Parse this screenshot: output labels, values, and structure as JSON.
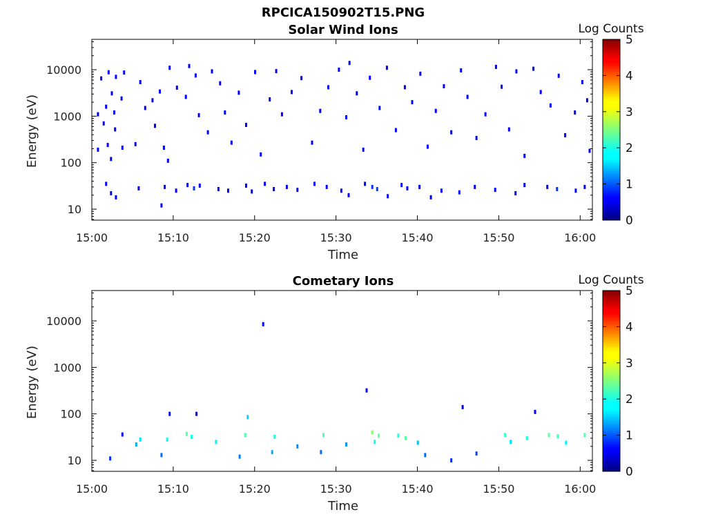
{
  "figure_title": "RPCICA150902T15.PNG",
  "colors": {
    "colormap": "jet",
    "axes_stroke": "#000000",
    "background": "#ffffff",
    "dark_pixel": "#00007f"
  },
  "chart_data": [
    {
      "type": "heatmap",
      "title": "Solar Wind Ions",
      "xlabel": "Time",
      "ylabel": "Energy (eV)",
      "x_ticks": [
        "15:00",
        "15:10",
        "15:20",
        "15:30",
        "15:40",
        "15:50",
        "16:00"
      ],
      "x_range_minutes": [
        0,
        61.5
      ],
      "y_scale": "log",
      "y_ticks": [
        "10",
        "100",
        "1000",
        "10000"
      ],
      "y_range_ev": [
        5.8,
        45000
      ],
      "colorbar": {
        "label": "Log Counts",
        "ticks": [
          "0",
          "1",
          "2",
          "3",
          "4",
          "5"
        ],
        "range": [
          0,
          5
        ]
      },
      "description_of_values": "sparse single counts (log counts ~0) scattered over 10-20000 eV; denser low-energy band ~20-40 eV",
      "cells": [
        {
          "t": 1.2,
          "e": 6500,
          "c": 0
        },
        {
          "t": 2.1,
          "e": 8800,
          "c": 0
        },
        {
          "t": 3.0,
          "e": 7000,
          "c": 0
        },
        {
          "t": 4.0,
          "e": 8700,
          "c": 0
        },
        {
          "t": 2.5,
          "e": 3100,
          "c": 0
        },
        {
          "t": 3.7,
          "e": 2400,
          "c": 0
        },
        {
          "t": 1.8,
          "e": 1600,
          "c": 0
        },
        {
          "t": 2.8,
          "e": 1200,
          "c": 0
        },
        {
          "t": 0.8,
          "e": 1100,
          "c": 0
        },
        {
          "t": 1.5,
          "e": 700,
          "c": 0
        },
        {
          "t": 2.9,
          "e": 520,
          "c": 0
        },
        {
          "t": 0.8,
          "e": 190,
          "c": 0
        },
        {
          "t": 2.0,
          "e": 240,
          "c": 0
        },
        {
          "t": 2.4,
          "e": 120,
          "c": 0
        },
        {
          "t": 3.8,
          "e": 210,
          "c": 0
        },
        {
          "t": 5.4,
          "e": 250,
          "c": 0
        },
        {
          "t": 6.0,
          "e": 5400,
          "c": 0
        },
        {
          "t": 6.6,
          "e": 1500,
          "c": 0
        },
        {
          "t": 7.5,
          "e": 2200,
          "c": 0
        },
        {
          "t": 8.4,
          "e": 3400,
          "c": 0
        },
        {
          "t": 7.8,
          "e": 620,
          "c": 0
        },
        {
          "t": 8.9,
          "e": 210,
          "c": 0
        },
        {
          "t": 9.4,
          "e": 110,
          "c": 0
        },
        {
          "t": 9.6,
          "e": 11000,
          "c": 0
        },
        {
          "t": 10.5,
          "e": 4100,
          "c": 0
        },
        {
          "t": 11.6,
          "e": 2600,
          "c": 0
        },
        {
          "t": 12.0,
          "e": 12000,
          "c": 0
        },
        {
          "t": 12.8,
          "e": 7500,
          "c": 0
        },
        {
          "t": 13.2,
          "e": 1050,
          "c": 0
        },
        {
          "t": 14.3,
          "e": 450,
          "c": 0
        },
        {
          "t": 14.8,
          "e": 9200,
          "c": 0
        },
        {
          "t": 15.8,
          "e": 5100,
          "c": 0
        },
        {
          "t": 16.4,
          "e": 1200,
          "c": 0
        },
        {
          "t": 17.2,
          "e": 270,
          "c": 0
        },
        {
          "t": 18.1,
          "e": 3200,
          "c": 0
        },
        {
          "t": 19.0,
          "e": 650,
          "c": 0
        },
        {
          "t": 20.1,
          "e": 8900,
          "c": 0
        },
        {
          "t": 20.8,
          "e": 150,
          "c": 0
        },
        {
          "t": 21.9,
          "e": 2300,
          "c": 0
        },
        {
          "t": 22.7,
          "e": 9300,
          "c": 0
        },
        {
          "t": 23.4,
          "e": 1100,
          "c": 0
        },
        {
          "t": 24.6,
          "e": 3300,
          "c": 0
        },
        {
          "t": 25.8,
          "e": 6600,
          "c": 0
        },
        {
          "t": 27.1,
          "e": 270,
          "c": 0
        },
        {
          "t": 28.1,
          "e": 1300,
          "c": 0
        },
        {
          "t": 29.1,
          "e": 4200,
          "c": 0
        },
        {
          "t": 30.4,
          "e": 10000,
          "c": 0
        },
        {
          "t": 31.3,
          "e": 950,
          "c": 0
        },
        {
          "t": 31.7,
          "e": 14000,
          "c": 0
        },
        {
          "t": 32.6,
          "e": 3100,
          "c": 0
        },
        {
          "t": 33.4,
          "e": 190,
          "c": 0
        },
        {
          "t": 34.2,
          "e": 6700,
          "c": 0
        },
        {
          "t": 35.4,
          "e": 1500,
          "c": 0
        },
        {
          "t": 36.3,
          "e": 11000,
          "c": 0
        },
        {
          "t": 37.4,
          "e": 500,
          "c": 0
        },
        {
          "t": 38.5,
          "e": 4200,
          "c": 0
        },
        {
          "t": 39.4,
          "e": 2000,
          "c": 0
        },
        {
          "t": 40.4,
          "e": 8200,
          "c": 0
        },
        {
          "t": 41.3,
          "e": 220,
          "c": 0
        },
        {
          "t": 42.3,
          "e": 1300,
          "c": 0
        },
        {
          "t": 43.3,
          "e": 4400,
          "c": 0
        },
        {
          "t": 44.2,
          "e": 450,
          "c": 0
        },
        {
          "t": 45.4,
          "e": 9700,
          "c": 0
        },
        {
          "t": 46.2,
          "e": 2600,
          "c": 0
        },
        {
          "t": 47.3,
          "e": 340,
          "c": 0
        },
        {
          "t": 48.4,
          "e": 1100,
          "c": 0
        },
        {
          "t": 49.7,
          "e": 11500,
          "c": 0
        },
        {
          "t": 50.4,
          "e": 4300,
          "c": 0
        },
        {
          "t": 51.3,
          "e": 520,
          "c": 0
        },
        {
          "t": 52.2,
          "e": 9200,
          "c": 0
        },
        {
          "t": 53.2,
          "e": 140,
          "c": 0
        },
        {
          "t": 54.3,
          "e": 10500,
          "c": 0
        },
        {
          "t": 55.2,
          "e": 3300,
          "c": 0
        },
        {
          "t": 56.4,
          "e": 1700,
          "c": 0
        },
        {
          "t": 57.4,
          "e": 7400,
          "c": 0
        },
        {
          "t": 58.2,
          "e": 390,
          "c": 0
        },
        {
          "t": 59.4,
          "e": 1200,
          "c": 0
        },
        {
          "t": 60.3,
          "e": 5400,
          "c": 0
        },
        {
          "t": 60.9,
          "e": 2200,
          "c": 0
        },
        {
          "t": 61.2,
          "e": 180,
          "c": 0
        },
        {
          "t": 1.8,
          "e": 35,
          "c": 0
        },
        {
          "t": 2.4,
          "e": 22,
          "c": 0
        },
        {
          "t": 3.0,
          "e": 18,
          "c": 0
        },
        {
          "t": 5.8,
          "e": 28,
          "c": 0
        },
        {
          "t": 8.6,
          "e": 12,
          "c": 0
        },
        {
          "t": 9.0,
          "e": 30,
          "c": 0
        },
        {
          "t": 10.4,
          "e": 25,
          "c": 0
        },
        {
          "t": 11.8,
          "e": 33,
          "c": 0
        },
        {
          "t": 12.6,
          "e": 28,
          "c": 0.3
        },
        {
          "t": 13.3,
          "e": 32,
          "c": 0
        },
        {
          "t": 15.6,
          "e": 27,
          "c": 0
        },
        {
          "t": 16.8,
          "e": 25,
          "c": 0
        },
        {
          "t": 19.0,
          "e": 32,
          "c": 0
        },
        {
          "t": 19.7,
          "e": 24,
          "c": 0
        },
        {
          "t": 21.3,
          "e": 35,
          "c": 0
        },
        {
          "t": 22.4,
          "e": 27,
          "c": 0
        },
        {
          "t": 24.0,
          "e": 30,
          "c": 0
        },
        {
          "t": 25.3,
          "e": 26,
          "c": 0
        },
        {
          "t": 27.4,
          "e": 35,
          "c": 0
        },
        {
          "t": 28.9,
          "e": 30,
          "c": 0
        },
        {
          "t": 30.7,
          "e": 25,
          "c": 0
        },
        {
          "t": 31.6,
          "e": 20,
          "c": 0
        },
        {
          "t": 33.6,
          "e": 35,
          "c": 0
        },
        {
          "t": 34.5,
          "e": 30,
          "c": 0.3
        },
        {
          "t": 35.1,
          "e": 27,
          "c": 0.4
        },
        {
          "t": 36.4,
          "e": 19,
          "c": 0
        },
        {
          "t": 38.1,
          "e": 33,
          "c": 0
        },
        {
          "t": 38.8,
          "e": 28,
          "c": 0
        },
        {
          "t": 40.3,
          "e": 30,
          "c": 0
        },
        {
          "t": 41.7,
          "e": 18,
          "c": 0
        },
        {
          "t": 43.0,
          "e": 25,
          "c": 0
        },
        {
          "t": 45.2,
          "e": 23,
          "c": 0
        },
        {
          "t": 47.1,
          "e": 30,
          "c": 0
        },
        {
          "t": 49.6,
          "e": 26,
          "c": 0
        },
        {
          "t": 52.1,
          "e": 22,
          "c": 0
        },
        {
          "t": 53.2,
          "e": 33,
          "c": 0
        },
        {
          "t": 56.0,
          "e": 30,
          "c": 0
        },
        {
          "t": 57.2,
          "e": 27,
          "c": 0.3
        },
        {
          "t": 59.5,
          "e": 25,
          "c": 0
        },
        {
          "t": 60.6,
          "e": 30,
          "c": 0
        }
      ]
    },
    {
      "type": "heatmap",
      "title": "Cometary Ions",
      "xlabel": "Time",
      "ylabel": "Energy (eV)",
      "x_ticks": [
        "15:00",
        "15:10",
        "15:20",
        "15:30",
        "15:40",
        "15:50",
        "16:00"
      ],
      "x_range_minutes": [
        0,
        61.5
      ],
      "y_scale": "log",
      "y_ticks": [
        "10",
        "100",
        "1000",
        "10000"
      ],
      "y_range_ev": [
        5.8,
        45000
      ],
      "colorbar": {
        "label": "Log Counts",
        "ticks": [
          "0",
          "1",
          "2",
          "3",
          "4",
          "5"
        ],
        "range": [
          0,
          5
        ]
      },
      "description_of_values": "bursts of counts at ~8-45 eV with peaks of log counts ~1.5-2; few isolated points at higher energies",
      "cells": [
        {
          "t": 2.3,
          "e": 11,
          "c": 0.3
        },
        {
          "t": 5.5,
          "e": 22,
          "c": 1.0
        },
        {
          "t": 6.0,
          "e": 28,
          "c": 1.3
        },
        {
          "t": 8.6,
          "e": 13,
          "c": 0.6
        },
        {
          "t": 9.3,
          "e": 28,
          "c": 1.5
        },
        {
          "t": 11.7,
          "e": 37,
          "c": 1.9
        },
        {
          "t": 12.3,
          "e": 32,
          "c": 1.6
        },
        {
          "t": 15.3,
          "e": 25,
          "c": 1.4
        },
        {
          "t": 18.2,
          "e": 12,
          "c": 0.7
        },
        {
          "t": 18.9,
          "e": 35,
          "c": 1.9
        },
        {
          "t": 19.2,
          "e": 85,
          "c": 1.2
        },
        {
          "t": 22.5,
          "e": 32,
          "c": 1.7
        },
        {
          "t": 22.2,
          "e": 15,
          "c": 1.0
        },
        {
          "t": 25.3,
          "e": 20,
          "c": 0.8
        },
        {
          "t": 28.5,
          "e": 35,
          "c": 1.9
        },
        {
          "t": 28.2,
          "e": 15,
          "c": 0.6
        },
        {
          "t": 31.3,
          "e": 22,
          "c": 0.9
        },
        {
          "t": 34.5,
          "e": 40,
          "c": 2.2
        },
        {
          "t": 35.3,
          "e": 34,
          "c": 2.0
        },
        {
          "t": 34.8,
          "e": 25,
          "c": 1.5
        },
        {
          "t": 37.7,
          "e": 34,
          "c": 1.6
        },
        {
          "t": 38.6,
          "e": 30,
          "c": 2.0
        },
        {
          "t": 40.1,
          "e": 24,
          "c": 1.1
        },
        {
          "t": 41.0,
          "e": 13,
          "c": 0.6
        },
        {
          "t": 44.2,
          "e": 10,
          "c": 0.3
        },
        {
          "t": 47.3,
          "e": 14,
          "c": 0.4
        },
        {
          "t": 50.8,
          "e": 35,
          "c": 1.8
        },
        {
          "t": 51.5,
          "e": 25,
          "c": 1.3
        },
        {
          "t": 53.5,
          "e": 30,
          "c": 1.6
        },
        {
          "t": 56.2,
          "e": 35,
          "c": 2.0
        },
        {
          "t": 57.3,
          "e": 33,
          "c": 1.8
        },
        {
          "t": 58.3,
          "e": 24,
          "c": 1.4
        },
        {
          "t": 60.6,
          "e": 35,
          "c": 1.9
        },
        {
          "t": 21.1,
          "e": 8500,
          "c": 0
        },
        {
          "t": 33.8,
          "e": 320,
          "c": 0
        },
        {
          "t": 45.6,
          "e": 140,
          "c": 0
        },
        {
          "t": 9.6,
          "e": 100,
          "c": 0
        },
        {
          "t": 12.9,
          "e": 100,
          "c": 0
        },
        {
          "t": 54.5,
          "e": 110,
          "c": 0
        },
        {
          "t": 3.8,
          "e": 36,
          "c": 0
        }
      ]
    }
  ]
}
